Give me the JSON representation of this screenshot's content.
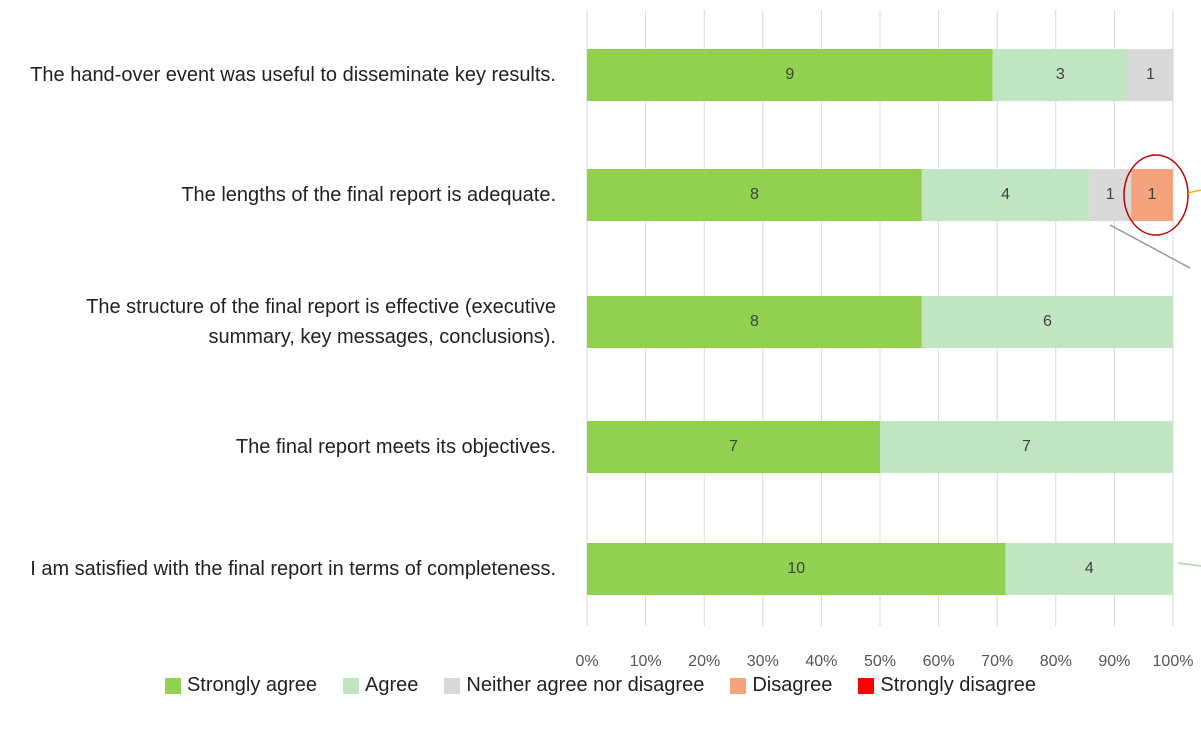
{
  "chart_data": {
    "type": "bar",
    "orientation": "horizontal",
    "stack": "percent",
    "categories": [
      "The hand-over event was useful to disseminate key results.",
      "The lengths of the final report is adequate.",
      "The structure of the final report is effective (executive summary, key messages, conclusions).",
      "The final report meets its objectives.",
      "I am satisfied with the final report in terms of completeness."
    ],
    "series": [
      {
        "name": "Strongly agree",
        "color": "#92d050",
        "values": [
          9,
          8,
          8,
          7,
          10
        ]
      },
      {
        "name": "Agree",
        "color": "#c1e5c0",
        "values": [
          3,
          4,
          6,
          7,
          4
        ]
      },
      {
        "name": "Neither agree nor disagree",
        "color": "#d9d9d9",
        "values": [
          1,
          1,
          null,
          null,
          null
        ]
      },
      {
        "name": "Disagree",
        "color": "#f4a37c",
        "values": [
          null,
          1,
          null,
          null,
          null
        ]
      },
      {
        "name": "Strongly disagree",
        "color": "#ff0000",
        "values": [
          null,
          null,
          null,
          null,
          null
        ]
      }
    ],
    "xlim": [
      0,
      100
    ],
    "xticks": [
      {
        "value": 0,
        "label": "0%"
      },
      {
        "value": 10,
        "label": "10%"
      },
      {
        "value": 20,
        "label": "20%"
      },
      {
        "value": 30,
        "label": "30%"
      },
      {
        "value": 40,
        "label": "40%"
      },
      {
        "value": 50,
        "label": "50%"
      },
      {
        "value": 60,
        "label": "60%"
      },
      {
        "value": 70,
        "label": "70%"
      },
      {
        "value": 80,
        "label": "80%"
      },
      {
        "value": 90,
        "label": "90%"
      },
      {
        "value": 100,
        "label": "100%"
      }
    ],
    "grid": true,
    "legend": "bottom"
  }
}
